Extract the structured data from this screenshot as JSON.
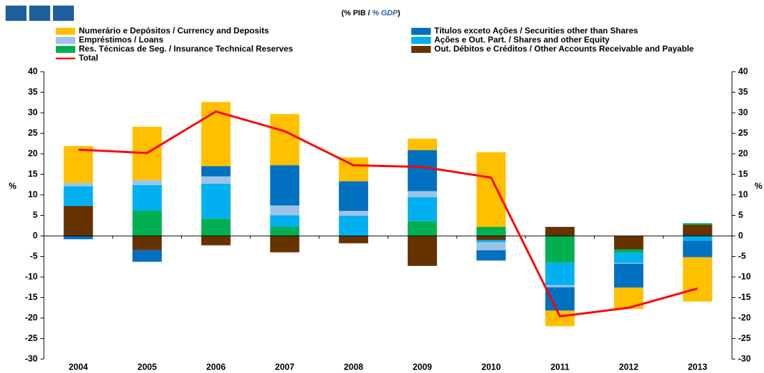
{
  "chart_data": {
    "type": "bar",
    "title_parts": [
      "(% PIB / ",
      "% GDP",
      ")"
    ],
    "y_label": "%",
    "y2_label": "%",
    "categories": [
      "2004",
      "2005",
      "2006",
      "2007",
      "2008",
      "2009",
      "2010",
      "2011",
      "2012",
      "2013"
    ],
    "series": [
      {
        "name": "Numerário e Depósitos / Currency and Deposits",
        "color": "#ffc000",
        "values": [
          9,
          13,
          15.6,
          12.5,
          5.8,
          2.8,
          18.2,
          -3.8,
          -5.2,
          -10.8
        ]
      },
      {
        "name": "Títulos exceto Ações / Securities other than Shares",
        "color": "#0070c0",
        "values": [
          -0.8,
          -2.8,
          2.5,
          9.8,
          7.2,
          10,
          -2.5,
          -5.7,
          -5.8,
          -4
        ]
      },
      {
        "name": "Empréstimos / Loans",
        "color": "#9dc3e6",
        "values": [
          0.8,
          1.2,
          1.8,
          2.4,
          1.2,
          1.5,
          -2,
          -0.5,
          -0.2,
          0
        ]
      },
      {
        "name": "Ações e Out. Part. / Shares and other Equity",
        "color": "#00b0f0",
        "values": [
          4.8,
          6.3,
          8.5,
          2.8,
          4.9,
          5.8,
          -0.5,
          -5.5,
          -2.5,
          -1.2
        ]
      },
      {
        "name": "Res. Técnicas de Seg. / Insurance Technical Reserves",
        "color": "#00b050",
        "values": [
          0,
          6.1,
          4.2,
          2.2,
          0,
          3.6,
          2.2,
          -6.5,
          -0.8,
          0.4
        ]
      },
      {
        "name": "Out. Débitos e Créditos / Other Accounts Receivable and Payable",
        "color": "#663300",
        "values": [
          7.3,
          -3.5,
          -2.3,
          -4,
          -1.8,
          -7.3,
          -1,
          2.2,
          -3.3,
          2.7
        ]
      },
      {
        "name": "Total",
        "type": "line",
        "color": "#ff0000",
        "values": [
          21,
          20.2,
          30.3,
          25.5,
          17.2,
          16.8,
          14.2,
          -19.6,
          -17.5,
          -12.8
        ]
      }
    ],
    "ylim": [
      -30,
      40
    ],
    "yticks": [
      -30,
      -25,
      -20,
      -15,
      -10,
      -5,
      0,
      5,
      10,
      15,
      20,
      25,
      30,
      35,
      40
    ]
  }
}
